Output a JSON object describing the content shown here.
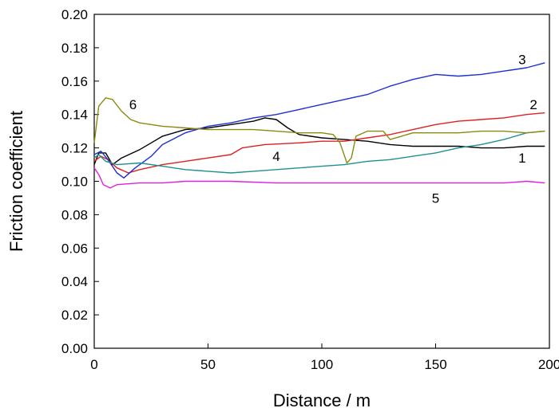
{
  "chart_data": {
    "type": "line",
    "title": "",
    "xlabel": "Distance / m",
    "ylabel": "Friction coefficient",
    "xlim": [
      0,
      200
    ],
    "ylim": [
      0,
      0.2
    ],
    "x_ticks": [
      "0",
      "50",
      "100",
      "150",
      "200"
    ],
    "y_ticks": [
      "0.00",
      "0.02",
      "0.04",
      "0.06",
      "0.08",
      "0.10",
      "0.12",
      "0.14",
      "0.16",
      "0.18",
      "0.20"
    ],
    "grid": false,
    "legend": "none",
    "series": [
      {
        "name": "1",
        "color": "#000000",
        "points": [
          [
            0,
            0.11
          ],
          [
            2,
            0.117
          ],
          [
            5,
            0.117
          ],
          [
            8,
            0.11
          ],
          [
            12,
            0.114
          ],
          [
            20,
            0.119
          ],
          [
            25,
            0.123
          ],
          [
            30,
            0.127
          ],
          [
            40,
            0.131
          ],
          [
            50,
            0.132
          ],
          [
            60,
            0.134
          ],
          [
            70,
            0.136
          ],
          [
            75,
            0.138
          ],
          [
            80,
            0.137
          ],
          [
            85,
            0.132
          ],
          [
            90,
            0.128
          ],
          [
            100,
            0.126
          ],
          [
            110,
            0.125
          ],
          [
            120,
            0.124
          ],
          [
            130,
            0.122
          ],
          [
            140,
            0.121
          ],
          [
            150,
            0.121
          ],
          [
            160,
            0.121
          ],
          [
            170,
            0.12
          ],
          [
            180,
            0.12
          ],
          [
            190,
            0.121
          ],
          [
            198,
            0.121
          ]
        ]
      },
      {
        "name": "2",
        "color": "#e02020",
        "points": [
          [
            0,
            0.112
          ],
          [
            3,
            0.115
          ],
          [
            6,
            0.113
          ],
          [
            10,
            0.108
          ],
          [
            15,
            0.105
          ],
          [
            20,
            0.107
          ],
          [
            30,
            0.11
          ],
          [
            40,
            0.112
          ],
          [
            50,
            0.114
          ],
          [
            60,
            0.116
          ],
          [
            65,
            0.12
          ],
          [
            75,
            0.122
          ],
          [
            90,
            0.123
          ],
          [
            100,
            0.124
          ],
          [
            110,
            0.124
          ],
          [
            120,
            0.126
          ],
          [
            130,
            0.128
          ],
          [
            140,
            0.131
          ],
          [
            150,
            0.134
          ],
          [
            160,
            0.136
          ],
          [
            170,
            0.137
          ],
          [
            180,
            0.138
          ],
          [
            190,
            0.14
          ],
          [
            198,
            0.141
          ]
        ]
      },
      {
        "name": "3",
        "color": "#1f2fd0",
        "points": [
          [
            0,
            0.116
          ],
          [
            3,
            0.118
          ],
          [
            6,
            0.113
          ],
          [
            10,
            0.105
          ],
          [
            13,
            0.102
          ],
          [
            18,
            0.108
          ],
          [
            25,
            0.115
          ],
          [
            30,
            0.122
          ],
          [
            40,
            0.129
          ],
          [
            50,
            0.133
          ],
          [
            60,
            0.135
          ],
          [
            70,
            0.138
          ],
          [
            80,
            0.14
          ],
          [
            90,
            0.143
          ],
          [
            100,
            0.146
          ],
          [
            110,
            0.149
          ],
          [
            120,
            0.152
          ],
          [
            130,
            0.157
          ],
          [
            140,
            0.161
          ],
          [
            150,
            0.164
          ],
          [
            160,
            0.163
          ],
          [
            170,
            0.164
          ],
          [
            180,
            0.166
          ],
          [
            190,
            0.168
          ],
          [
            198,
            0.171
          ]
        ]
      },
      {
        "name": "4",
        "color": "#1f9090",
        "points": [
          [
            0,
            0.114
          ],
          [
            2,
            0.116
          ],
          [
            5,
            0.112
          ],
          [
            10,
            0.11
          ],
          [
            20,
            0.111
          ],
          [
            30,
            0.109
          ],
          [
            40,
            0.107
          ],
          [
            50,
            0.106
          ],
          [
            60,
            0.105
          ],
          [
            70,
            0.106
          ],
          [
            80,
            0.107
          ],
          [
            90,
            0.108
          ],
          [
            100,
            0.109
          ],
          [
            110,
            0.11
          ],
          [
            120,
            0.112
          ],
          [
            130,
            0.113
          ],
          [
            140,
            0.115
          ],
          [
            150,
            0.117
          ],
          [
            160,
            0.12
          ],
          [
            170,
            0.122
          ],
          [
            180,
            0.125
          ],
          [
            190,
            0.129
          ],
          [
            198,
            0.13
          ]
        ]
      },
      {
        "name": "5",
        "color": "#e020e0",
        "points": [
          [
            0,
            0.108
          ],
          [
            2,
            0.104
          ],
          [
            4,
            0.098
          ],
          [
            7,
            0.096
          ],
          [
            10,
            0.098
          ],
          [
            20,
            0.099
          ],
          [
            30,
            0.099
          ],
          [
            40,
            0.1
          ],
          [
            50,
            0.1
          ],
          [
            60,
            0.1
          ],
          [
            80,
            0.099
          ],
          [
            100,
            0.099
          ],
          [
            120,
            0.099
          ],
          [
            140,
            0.099
          ],
          [
            160,
            0.099
          ],
          [
            180,
            0.099
          ],
          [
            190,
            0.1
          ],
          [
            198,
            0.099
          ]
        ]
      },
      {
        "name": "6",
        "color": "#8a8a10",
        "points": [
          [
            0,
            0.123
          ],
          [
            2,
            0.145
          ],
          [
            5,
            0.15
          ],
          [
            8,
            0.149
          ],
          [
            12,
            0.142
          ],
          [
            16,
            0.137
          ],
          [
            20,
            0.135
          ],
          [
            30,
            0.133
          ],
          [
            40,
            0.132
          ],
          [
            50,
            0.131
          ],
          [
            60,
            0.131
          ],
          [
            70,
            0.131
          ],
          [
            80,
            0.13
          ],
          [
            90,
            0.129
          ],
          [
            100,
            0.129
          ],
          [
            105,
            0.128
          ],
          [
            108,
            0.123
          ],
          [
            111,
            0.111
          ],
          [
            113,
            0.114
          ],
          [
            115,
            0.127
          ],
          [
            120,
            0.13
          ],
          [
            127,
            0.13
          ],
          [
            130,
            0.125
          ],
          [
            135,
            0.127
          ],
          [
            140,
            0.129
          ],
          [
            150,
            0.129
          ],
          [
            160,
            0.129
          ],
          [
            170,
            0.13
          ],
          [
            180,
            0.13
          ],
          [
            190,
            0.129
          ],
          [
            198,
            0.13
          ]
        ]
      }
    ],
    "annotations": [
      {
        "text": "1",
        "x": 188,
        "y": 0.114
      },
      {
        "text": "2",
        "x": 193,
        "y": 0.146
      },
      {
        "text": "3",
        "x": 188,
        "y": 0.173
      },
      {
        "text": "4",
        "x": 80,
        "y": 0.115
      },
      {
        "text": "5",
        "x": 150,
        "y": 0.09
      },
      {
        "text": "6",
        "x": 17,
        "y": 0.146
      }
    ]
  }
}
